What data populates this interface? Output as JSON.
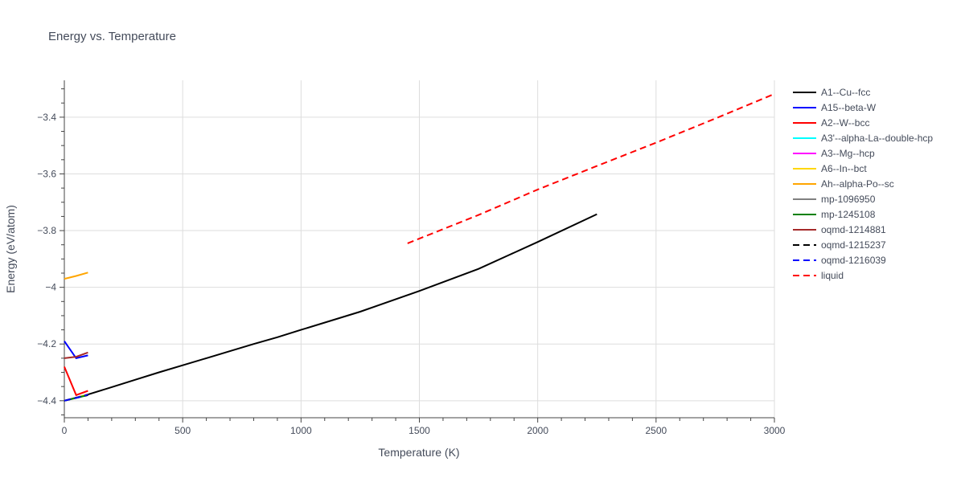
{
  "chart_data": {
    "type": "line",
    "title": "Energy vs. Temperature",
    "xlabel": "Temperature (K)",
    "ylabel": "Energy (eV/atom)",
    "xlim": [
      0,
      3000
    ],
    "ylim": [
      -4.46,
      -3.27
    ],
    "grid": true,
    "legend_position": "right",
    "x_ticks": [
      0,
      500,
      1000,
      1500,
      2000,
      2500,
      3000
    ],
    "y_ticks": [
      -4.4,
      -4.2,
      -4.0,
      -3.8,
      -3.6,
      -3.4
    ],
    "y_tick_labels": [
      "−4.4",
      "−4.2",
      "−4",
      "−3.8",
      "−3.6",
      "−3.4"
    ],
    "series": [
      {
        "name": "A1--Cu--fcc",
        "color": "#000000",
        "dash": "solid",
        "x": [
          0,
          100,
          200,
          300,
          400,
          500,
          600,
          700,
          800,
          900,
          1000,
          1250,
          1500,
          1750,
          1900,
          2000,
          2250
        ],
        "y": [
          -4.4,
          -4.378,
          -4.352,
          -4.326,
          -4.3,
          -4.275,
          -4.25,
          -4.225,
          -4.2,
          -4.176,
          -4.15,
          -4.086,
          -4.013,
          -3.935,
          -3.878,
          -3.84,
          -3.742
        ]
      },
      {
        "name": "A15--beta-W",
        "color": "#0000ff",
        "dash": "solid",
        "x": [
          0,
          50,
          100
        ],
        "y": [
          -4.19,
          -4.25,
          -4.24
        ]
      },
      {
        "name": "A2--W--bcc",
        "color": "#ff0000",
        "dash": "solid",
        "x": [
          0,
          50,
          100
        ],
        "y": [
          -4.28,
          -4.38,
          -4.365
        ]
      },
      {
        "name": "A3'--alpha-La--double-hcp",
        "color": "#00ffff",
        "dash": "solid",
        "x": [
          0,
          50,
          100
        ],
        "y": [
          -4.4,
          -4.39,
          -4.378
        ]
      },
      {
        "name": "A3--Mg--hcp",
        "color": "#ff00ff",
        "dash": "solid",
        "x": [
          0,
          50,
          100
        ],
        "y": [
          -4.4,
          -4.39,
          -4.379
        ]
      },
      {
        "name": "A6--In--bct",
        "color": "#ffd700",
        "dash": "solid",
        "x": [
          0,
          50,
          100
        ],
        "y": [
          -4.4,
          -4.39,
          -4.377
        ]
      },
      {
        "name": "Ah--alpha-Po--sc",
        "color": "#ffa500",
        "dash": "solid",
        "x": [
          0,
          50,
          100
        ],
        "y": [
          -3.97,
          -3.96,
          -3.948
        ]
      },
      {
        "name": "mp-1096950",
        "color": "#808080",
        "dash": "solid",
        "x": [
          0,
          50,
          100
        ],
        "y": [
          -4.4,
          -4.39,
          -4.38
        ]
      },
      {
        "name": "mp-1245108",
        "color": "#008000",
        "dash": "solid",
        "x": [
          0,
          50,
          100
        ],
        "y": [
          -4.4,
          -4.39,
          -4.38
        ]
      },
      {
        "name": "oqmd-1214881",
        "color": "#a52a2a",
        "dash": "solid",
        "x": [
          0,
          50,
          100
        ],
        "y": [
          -4.25,
          -4.245,
          -4.23
        ]
      },
      {
        "name": "oqmd-1215237",
        "color": "#000000",
        "dash": "dash",
        "x": [
          0,
          50,
          100
        ],
        "y": [
          -4.4,
          -4.39,
          -4.38
        ]
      },
      {
        "name": "oqmd-1216039",
        "color": "#0000ff",
        "dash": "dash",
        "x": [
          0,
          50,
          100
        ],
        "y": [
          -4.4,
          -4.39,
          -4.378
        ]
      },
      {
        "name": "liquid",
        "color": "#ff0000",
        "dash": "dash",
        "x": [
          1450,
          1750,
          2000,
          2250,
          2500,
          2750,
          3000
        ],
        "y": [
          -3.845,
          -3.745,
          -3.655,
          -3.572,
          -3.49,
          -3.405,
          -3.318
        ]
      }
    ]
  }
}
